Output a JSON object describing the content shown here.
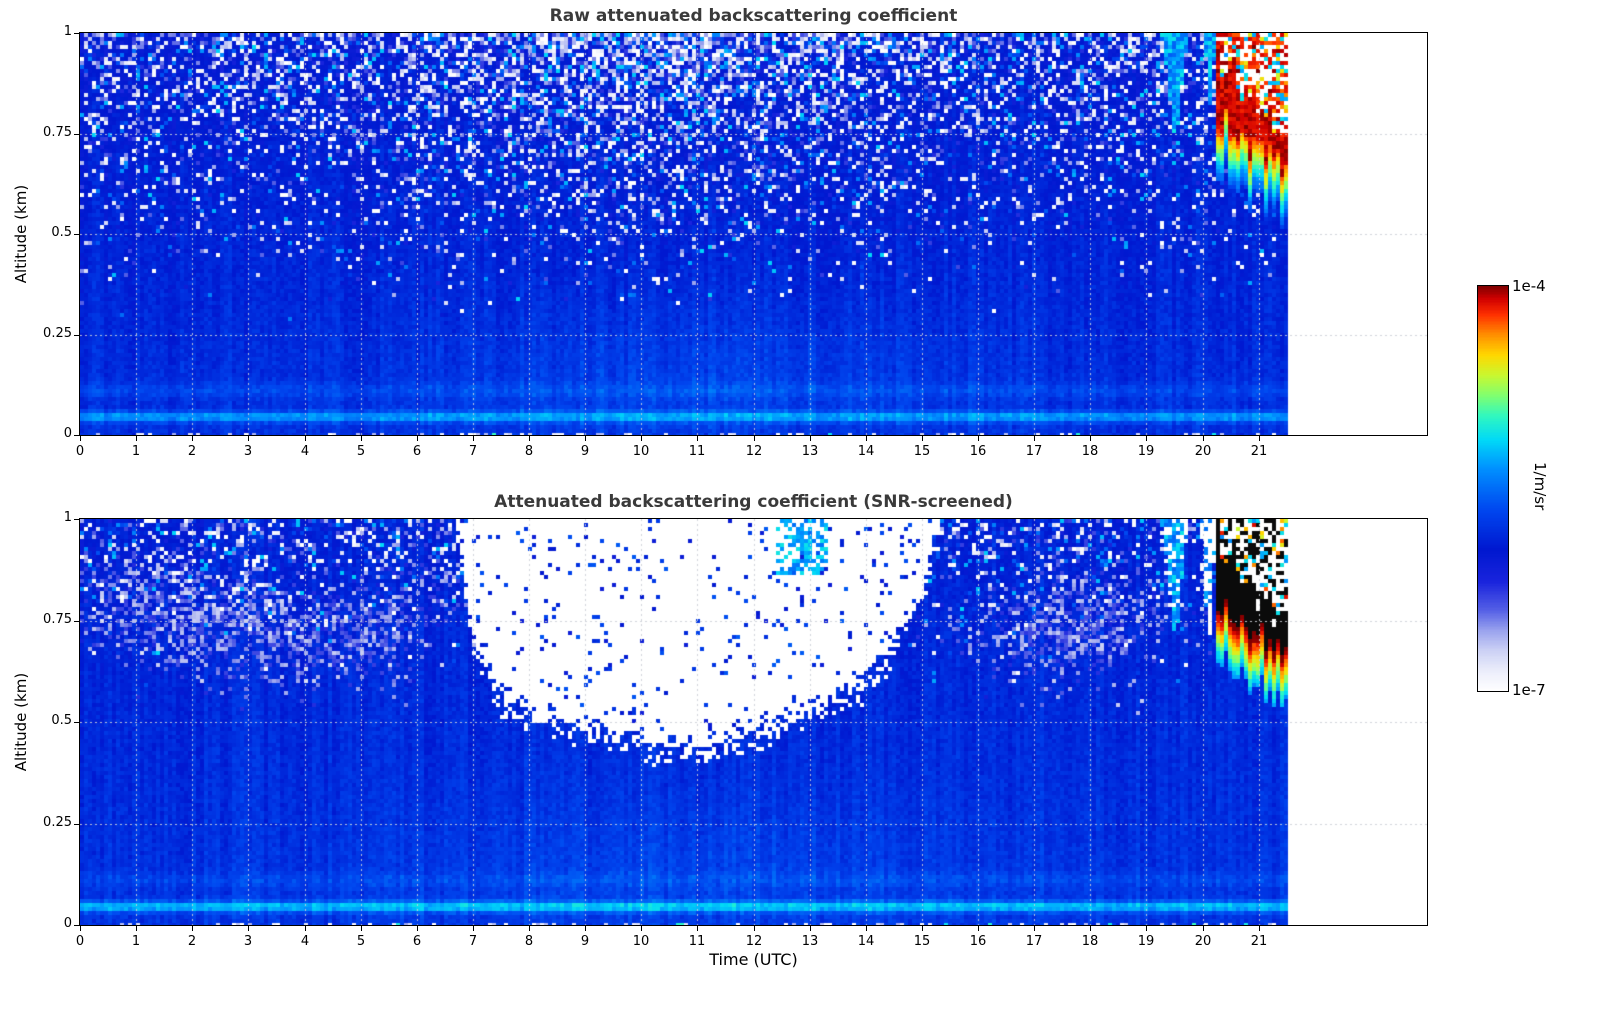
{
  "colorbar": {
    "max_label": "1e-4",
    "min_label": "1e-7",
    "unit_label": "1/m/sr",
    "stops": [
      [
        0.0,
        "#ffffff"
      ],
      [
        0.05,
        "#eceefb"
      ],
      [
        0.1,
        "#cdd2f5"
      ],
      [
        0.15,
        "#9aa3ee"
      ],
      [
        0.2,
        "#5560e6"
      ],
      [
        0.27,
        "#1a24dd"
      ],
      [
        0.35,
        "#0018d0"
      ],
      [
        0.45,
        "#0048f0"
      ],
      [
        0.55,
        "#0090ff"
      ],
      [
        0.62,
        "#00d8f8"
      ],
      [
        0.68,
        "#30f8c0"
      ],
      [
        0.73,
        "#80ff70"
      ],
      [
        0.78,
        "#c8f830"
      ],
      [
        0.83,
        "#ffd800"
      ],
      [
        0.88,
        "#ff9000"
      ],
      [
        0.93,
        "#ff3000"
      ],
      [
        0.97,
        "#d00000"
      ],
      [
        1.0,
        "#800000"
      ]
    ]
  },
  "chart_data": [
    {
      "type": "heatmap",
      "title": "Raw attenuated backscattering coefficient",
      "xlabel": "",
      "ylabel": "Altitude (km)",
      "units": "1/m/sr",
      "value_range": [
        "1e-7",
        "1e-4"
      ],
      "xlim": [
        0,
        24
      ],
      "ylim": [
        0,
        1
      ],
      "xticks": [
        0,
        1,
        2,
        3,
        4,
        5,
        6,
        7,
        8,
        9,
        10,
        11,
        12,
        13,
        14,
        15,
        16,
        17,
        18,
        19,
        20,
        21
      ],
      "yticks": [
        "0",
        "0.25",
        "0.5",
        "0.75",
        "1"
      ],
      "grid": true,
      "data_end_hour": 21.5,
      "features": [
        "uniform blue aerosol signal below ~0.5 km all day",
        "random white/cyan noise speckle increasing with altitude, densest 7-15 UTC aloft",
        "thin bright (light blue) surface layer near 0.05 km",
        "cyan plume near 19.5 UTC reaching plot top",
        "strong red/dark-red cloud return 20.3-21.5 UTC descending from ~0.9 to ~0.7 km with noisy saturated column above",
        "record ends near 21.5 UTC, white beyond"
      ],
      "render": {
        "seed": 20240521,
        "base": 0.4,
        "alt_slope": -0.055,
        "lowmid_amp": 0.04,
        "ground_band": {
          "alt": 0.05,
          "width": 0.013,
          "amp": 0.17
        },
        "ground_band2": {
          "alt": 0.115,
          "width": 0.018,
          "amp": 0.05
        },
        "speckle": {
          "a0": 0.26,
          "exp": 1.7,
          "pmax": 0.62,
          "bump": {
            "h": 10.5,
            "s": 3.5,
            "p": 0.35
          }
        },
        "plumes": [
          {
            "h": 19.5,
            "s": 0.15,
            "depth": 0.25,
            "mode": "cyan"
          },
          {
            "h": 20.12,
            "s": 0.07,
            "depth": 0.18,
            "mode": "cyan"
          }
        ],
        "cloud": {
          "h0": 20.25,
          "h1": 21.5,
          "a0": 0.86,
          "a1": 0.7,
          "hw0": 0.08,
          "hw1": 0.03,
          "style": "red"
        }
      }
    },
    {
      "type": "heatmap",
      "title": "Attenuated backscattering coefficient (SNR-screened)",
      "xlabel": "Time (UTC)",
      "ylabel": "Altitude (km)",
      "units": "1/m/sr",
      "value_range": [
        "1e-7",
        "1e-4"
      ],
      "xlim": [
        0,
        24
      ],
      "ylim": [
        0,
        1
      ],
      "xticks": [
        0,
        1,
        2,
        3,
        4,
        5,
        6,
        7,
        8,
        9,
        10,
        11,
        12,
        13,
        14,
        15,
        16,
        17,
        18,
        19,
        20,
        21
      ],
      "yticks": [
        "0",
        "0.25",
        "0.5",
        "0.75",
        "1"
      ],
      "grid": true,
      "data_end_hour": 21.5,
      "features": [
        "low-SNR region screened out (white) roughly 6.7-15.3 UTC above ~0.45-0.55 km, bowl shaped",
        "scattered blue pixels surviving inside screened area",
        "light grey-blue noisy patches 0.6-0.9 km before 7 UTC and 16-19 UTC",
        "cyan streaks near plot top around 12.5-13.3 and 19.5 UTC",
        "cloud saturates colour scale (black) 20.3-21.5 UTC at 0.6-0.9 km",
        "thin bright surface layer near 0.05 km",
        "record ends near 21.5 UTC, white beyond"
      ],
      "render": {
        "seed": 987654,
        "base": 0.41,
        "alt_slope": -0.045,
        "lowmid_amp": 0.03,
        "ground_band": {
          "alt": 0.05,
          "width": 0.013,
          "amp": 0.2
        },
        "ground_band2": {
          "alt": 0.115,
          "width": 0.018,
          "amp": 0.04
        },
        "speckle": {
          "a0": 0.5,
          "exp": 2.0,
          "pmax": 0.4
        },
        "light_patches": [
          {
            "h": 1.1,
            "a": 0.82,
            "hs": 0.9,
            "as": 0.09,
            "amp": 0.45
          },
          {
            "h": 2.4,
            "a": 0.74,
            "hs": 1.5,
            "as": 0.1,
            "amp": 0.7
          },
          {
            "h": 4.4,
            "a": 0.7,
            "hs": 1.2,
            "as": 0.09,
            "amp": 0.6
          },
          {
            "h": 5.9,
            "a": 0.8,
            "hs": 0.8,
            "as": 0.09,
            "amp": 0.5
          },
          {
            "h": 17.2,
            "a": 0.72,
            "hs": 1.1,
            "as": 0.1,
            "amp": 0.65
          },
          {
            "h": 18.3,
            "a": 0.77,
            "hs": 0.9,
            "as": 0.09,
            "amp": 0.55
          }
        ],
        "screen": {
          "h0": 6.7,
          "h1": 15.3,
          "speck": 0.05,
          "boundary": [
            [
              6.7,
              1.0
            ],
            [
              7.0,
              0.72
            ],
            [
              7.5,
              0.58
            ],
            [
              8.0,
              0.54
            ],
            [
              9.0,
              0.5
            ],
            [
              10.0,
              0.47
            ],
            [
              11.0,
              0.45
            ],
            [
              12.0,
              0.5
            ],
            [
              13.0,
              0.55
            ],
            [
              14.0,
              0.62
            ],
            [
              14.6,
              0.73
            ],
            [
              15.0,
              0.86
            ],
            [
              15.3,
              1.0
            ]
          ]
        },
        "cyan_streaks": [
          {
            "h0": 12.4,
            "h1": 13.3,
            "a0": 0.86,
            "p": 0.5
          }
        ],
        "plumes": [
          {
            "h": 19.5,
            "s": 0.15,
            "depth": 0.28,
            "mode": "cyan-white"
          },
          {
            "h": 20.1,
            "s": 0.09,
            "depth": 0.3,
            "mode": "white"
          }
        ],
        "cloud": {
          "h0": 20.25,
          "h1": 21.5,
          "a0": 0.86,
          "a1": 0.7,
          "hw0": 0.08,
          "hw1": 0.03,
          "style": "black"
        }
      }
    }
  ]
}
